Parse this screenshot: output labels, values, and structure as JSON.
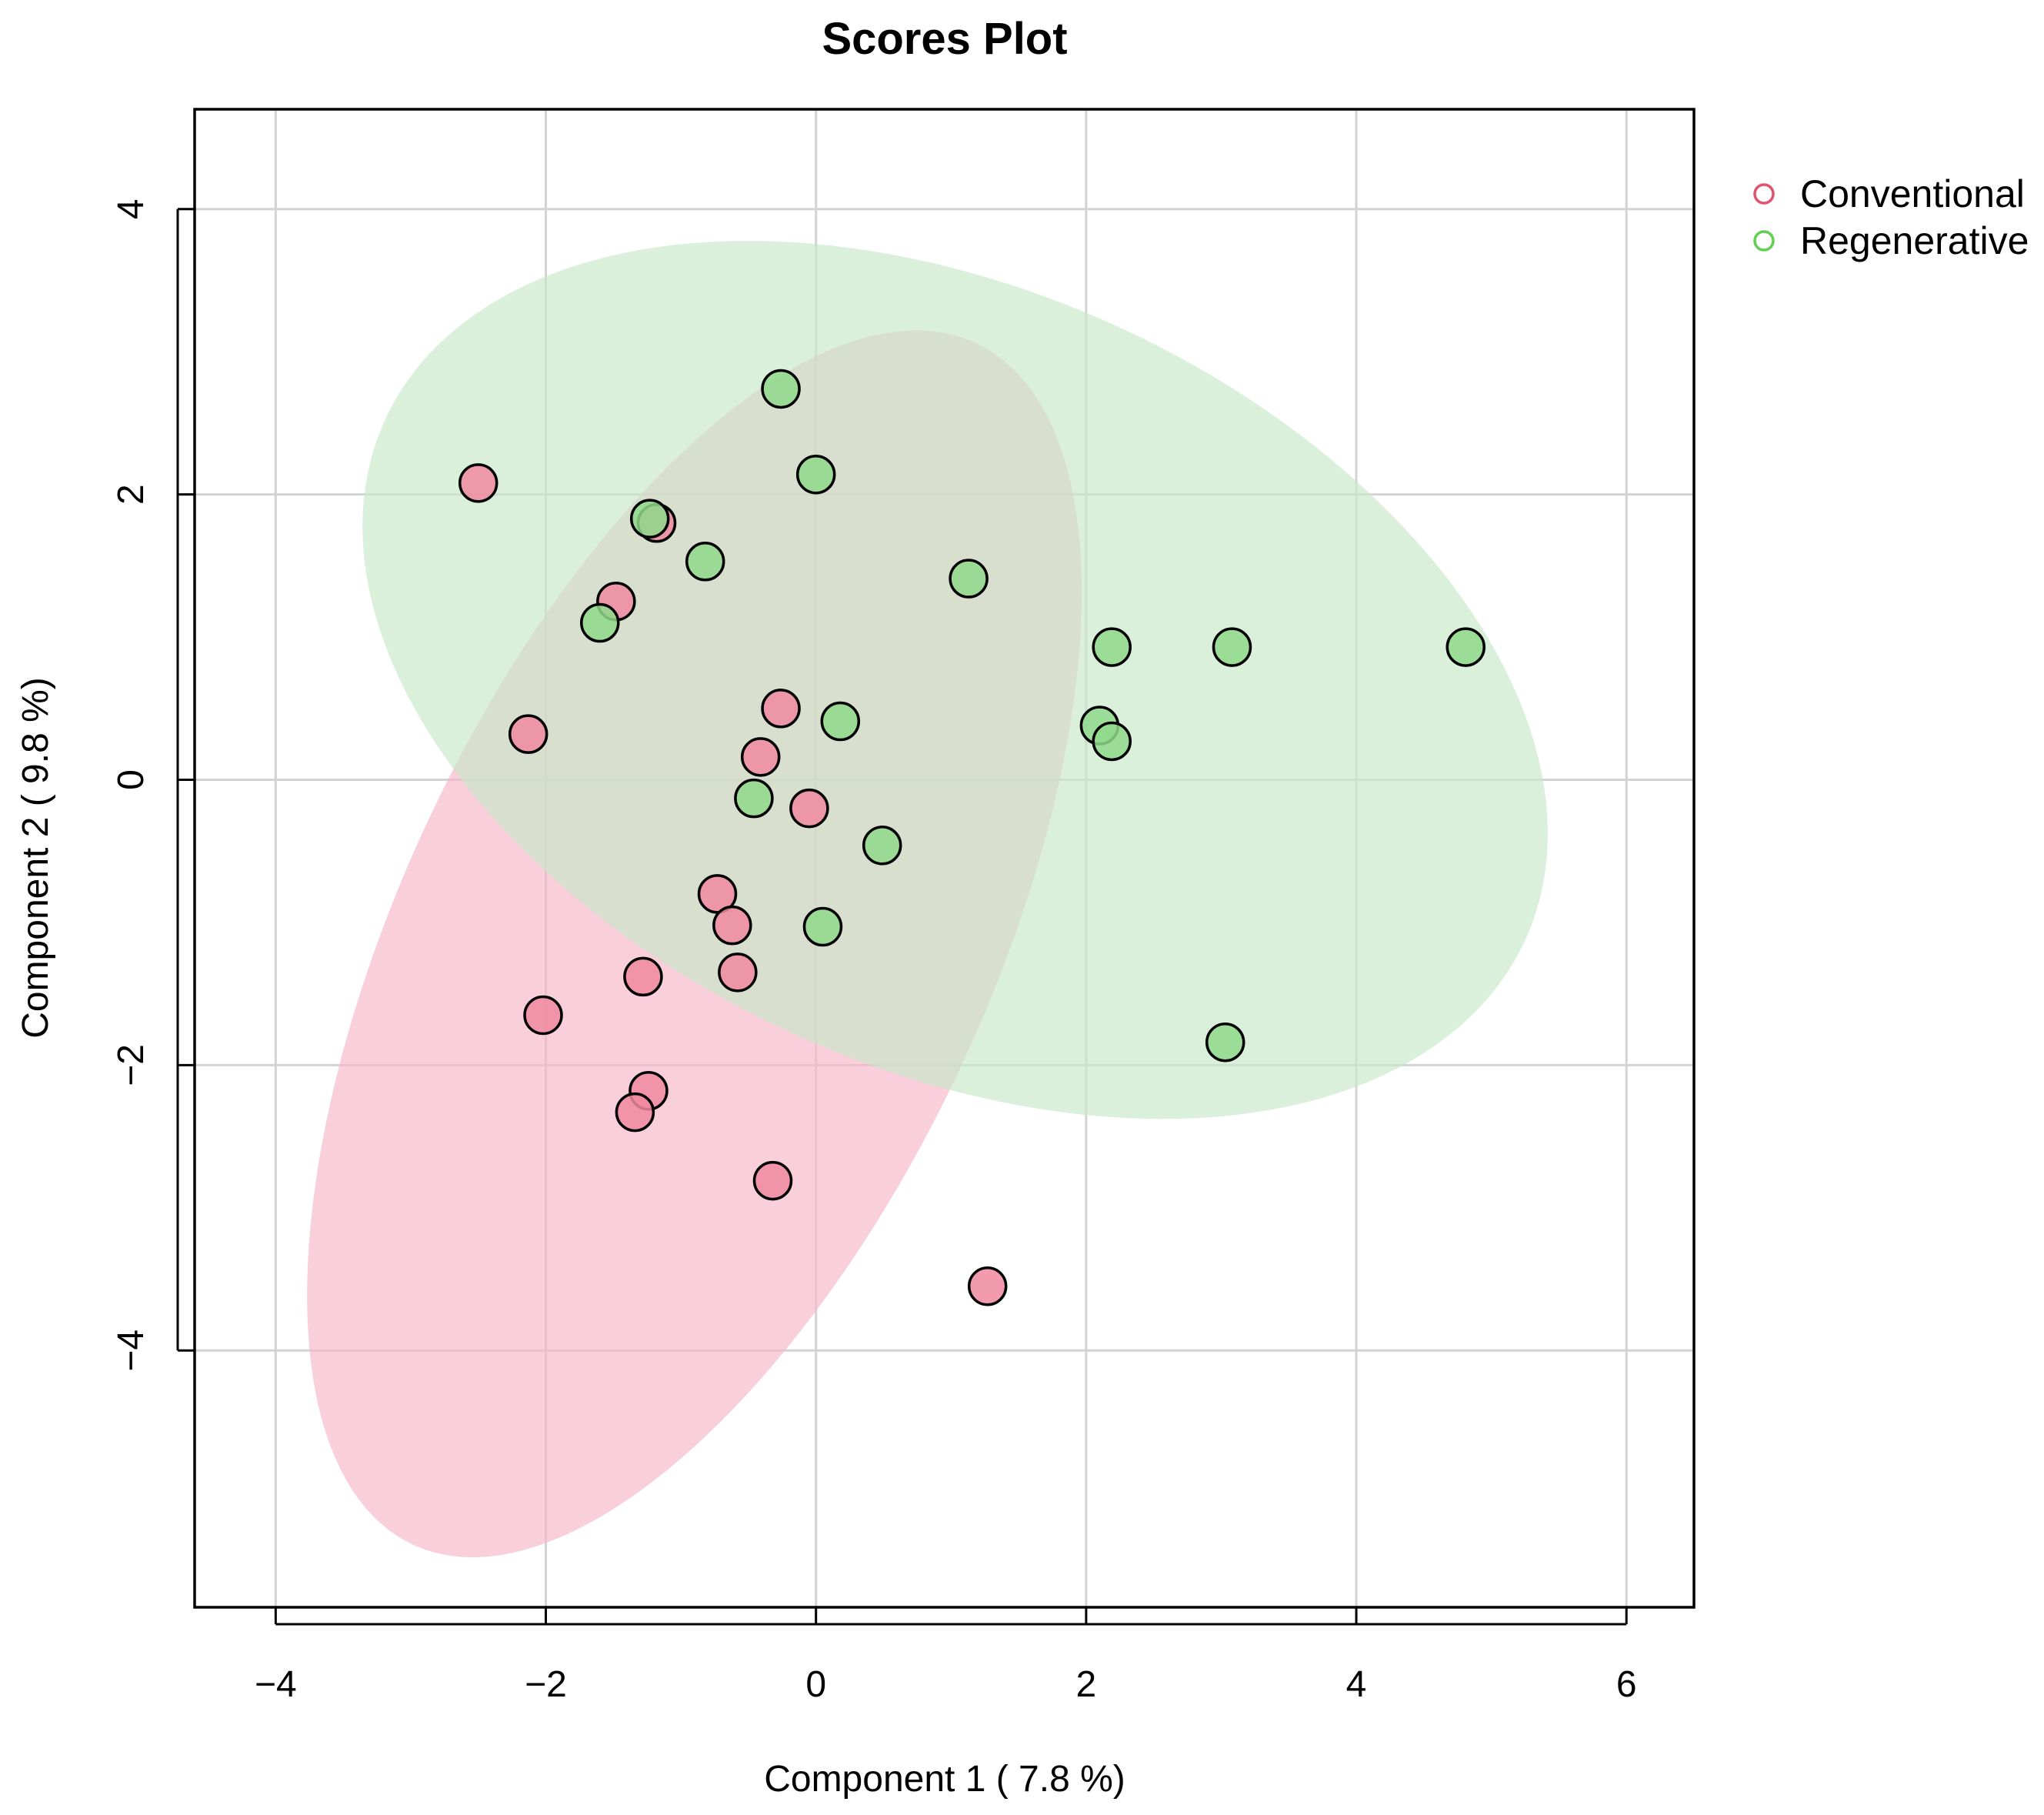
{
  "chart_data": {
    "type": "scatter",
    "title": "Scores Plot",
    "xlabel": "Component 1 ( 7.8 %)",
    "ylabel": "Component 2 ( 9.8 %)",
    "xlim": [
      -4.6,
      6.5
    ],
    "ylim": [
      -5.8,
      4.7
    ],
    "grid": true,
    "x_ticks": [
      -4,
      -2,
      0,
      2,
      4,
      6
    ],
    "y_ticks": [
      -4,
      -2,
      0,
      2,
      4
    ],
    "x_tick_labels": [
      "−4",
      "−2",
      "0",
      "2",
      "4",
      "6"
    ],
    "y_tick_labels": [
      "−4",
      "−2",
      "0",
      "2",
      "4"
    ],
    "legend_position": "top-right, outside plot",
    "series": [
      {
        "name": "Conventional",
        "color": "#DF536B",
        "fill": "#F08AA0",
        "ellipse_fill": "#F5B6C6",
        "ellipse": {
          "center": [
            -0.9,
            -1.15
          ],
          "semi_major": 4.7,
          "semi_minor": 2.15,
          "angle_deg": 63
        },
        "points": [
          [
            -2.5,
            2.08
          ],
          [
            -1.18,
            1.8
          ],
          [
            -1.48,
            1.25
          ],
          [
            -2.13,
            0.32
          ],
          [
            -0.26,
            0.5
          ],
          [
            -0.41,
            0.16
          ],
          [
            -0.05,
            -0.2
          ],
          [
            -0.73,
            -0.8
          ],
          [
            -0.62,
            -1.02
          ],
          [
            -0.58,
            -1.35
          ],
          [
            -1.28,
            -1.38
          ],
          [
            -2.02,
            -1.65
          ],
          [
            -1.24,
            -2.18
          ],
          [
            -1.34,
            -2.33
          ],
          [
            -0.32,
            -2.81
          ],
          [
            1.27,
            -3.55
          ]
        ]
      },
      {
        "name": "Regenerative",
        "color": "#61D04F",
        "fill": "#8FD98A",
        "ellipse_fill": "#C6E8C8",
        "ellipse": {
          "center": [
            1.03,
            0.7
          ],
          "semi_major": 4.6,
          "semi_minor": 2.75,
          "angle_deg": -22
        },
        "points": [
          [
            -0.26,
            2.74
          ],
          [
            0.0,
            2.14
          ],
          [
            -1.23,
            1.83
          ],
          [
            -0.82,
            1.53
          ],
          [
            1.13,
            1.41
          ],
          [
            -1.6,
            1.1
          ],
          [
            2.19,
            0.93
          ],
          [
            3.08,
            0.93
          ],
          [
            4.81,
            0.93
          ],
          [
            0.18,
            0.41
          ],
          [
            2.1,
            0.38
          ],
          [
            2.19,
            0.27
          ],
          [
            -0.46,
            -0.13
          ],
          [
            0.49,
            -0.46
          ],
          [
            0.05,
            -1.03
          ],
          [
            3.03,
            -1.84
          ]
        ]
      }
    ]
  }
}
